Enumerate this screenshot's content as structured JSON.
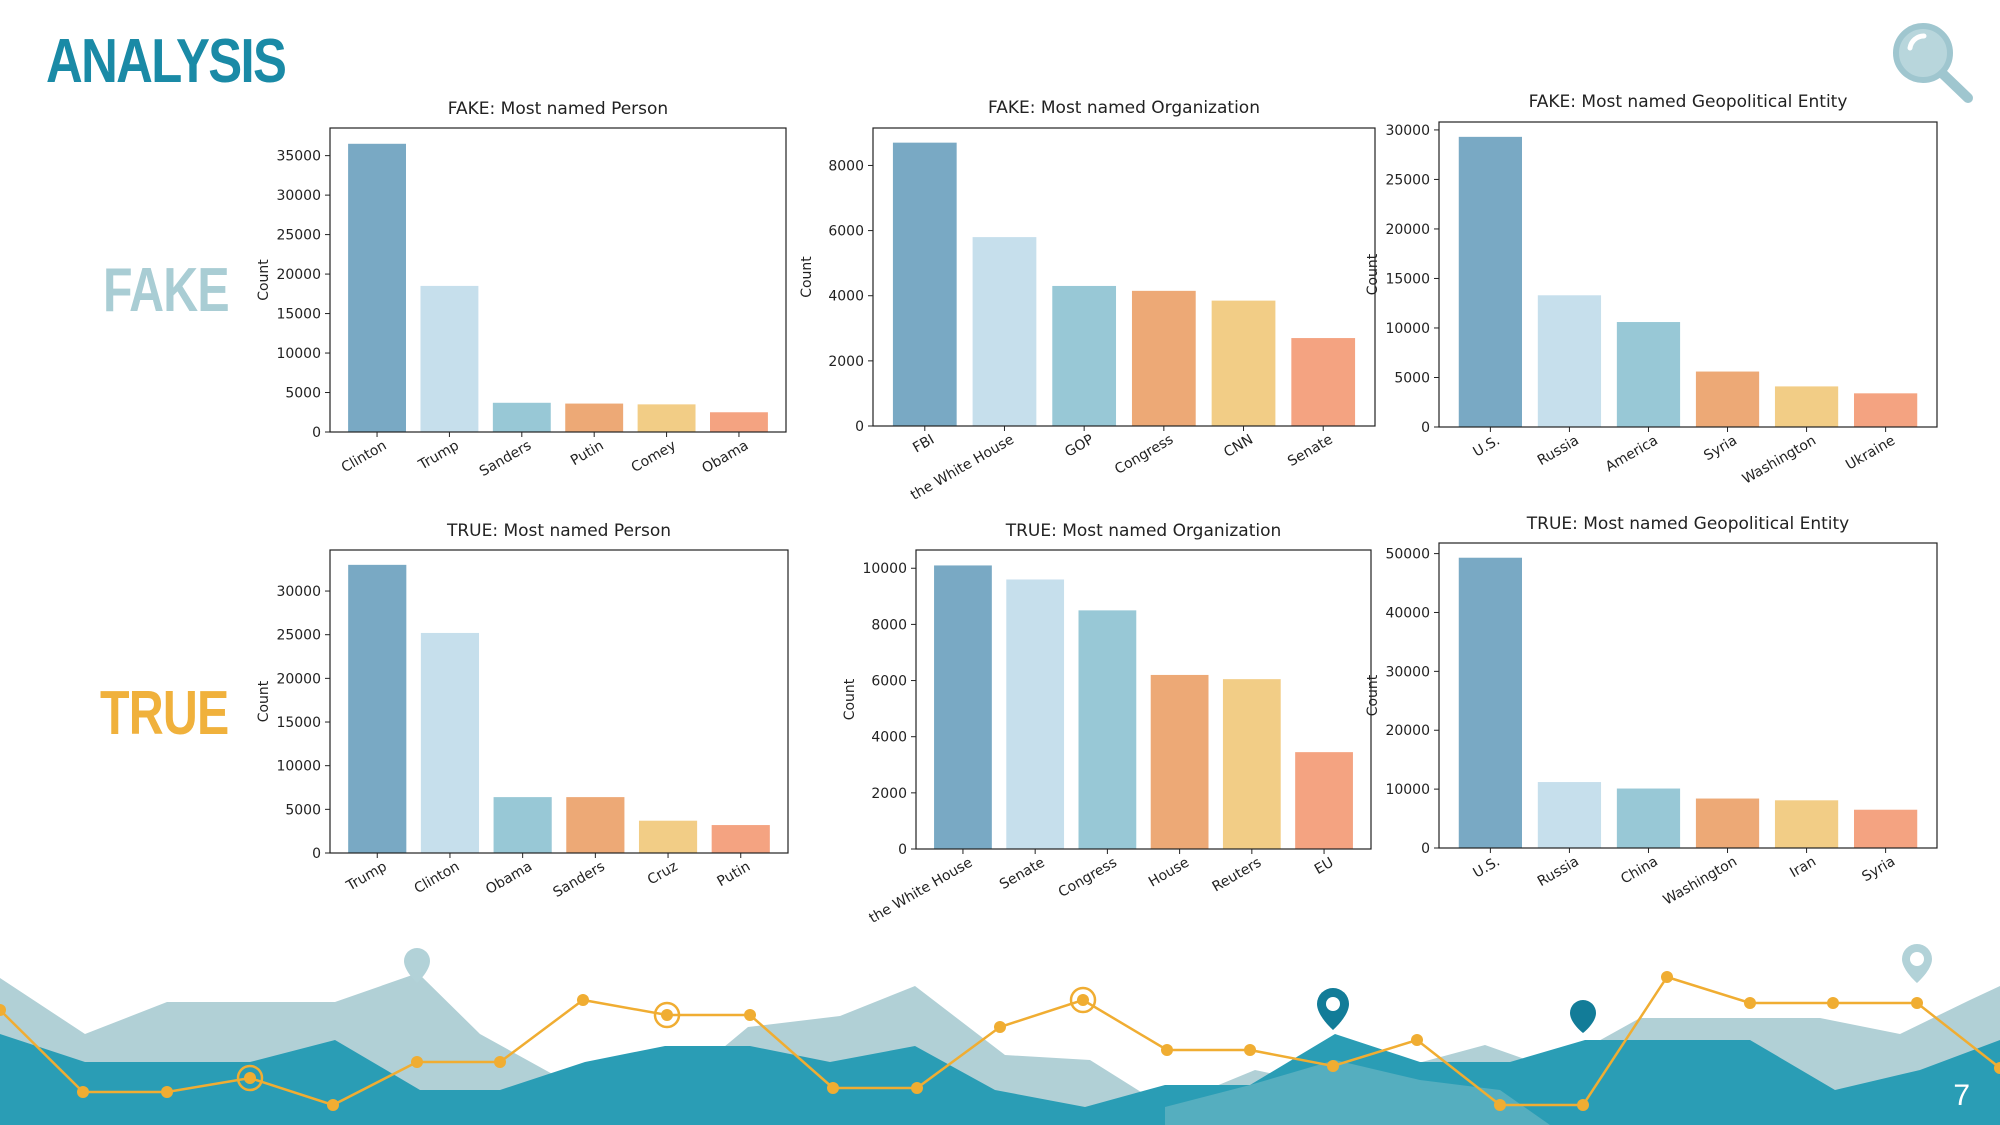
{
  "slide": {
    "title": "ANALYSIS",
    "page_number": "7",
    "fake_label": "FAKE",
    "true_label": "TRUE"
  },
  "colors": {
    "title": "#1a8aa6",
    "fake_label": "#a9cdd4",
    "true_label": "#f0b13c",
    "bars": [
      "#79a9c4",
      "#c6dfec",
      "#98c8d6",
      "#eda976",
      "#f2cd86",
      "#f4a381"
    ],
    "footer_light": "#b1d0d6",
    "footer_dark": "#2a9db5",
    "footer_mid": "#55aebf",
    "footer_line": "#f0ad32",
    "pin_dark": "#127c98",
    "pin_light": "#b2d2d8"
  },
  "chart_data": [
    {
      "type": "bar",
      "title": "FAKE: Most named Person",
      "ylabel": "Count",
      "categories": [
        "Clinton",
        "Trump",
        "Sanders",
        "Putin",
        "Comey",
        "Obama"
      ],
      "values": [
        36500,
        18500,
        3700,
        3600,
        3500,
        2500
      ],
      "yticks": [
        0,
        5000,
        10000,
        15000,
        20000,
        25000,
        30000,
        35000
      ],
      "ylim": [
        0,
        38500
      ]
    },
    {
      "type": "bar",
      "title": "FAKE: Most named Organization",
      "ylabel": "Count",
      "categories": [
        "FBI",
        "the White House",
        "GOP",
        "Congress",
        "CNN",
        "Senate"
      ],
      "values": [
        8700,
        5800,
        4300,
        4150,
        3850,
        2700
      ],
      "yticks": [
        0,
        2000,
        4000,
        6000,
        8000
      ],
      "ylim": [
        0,
        9150
      ]
    },
    {
      "type": "bar",
      "title": "FAKE: Most named Geopolitical Entity",
      "ylabel": "Count",
      "categories": [
        "U.S.",
        "Russia",
        "America",
        "Syria",
        "Washington",
        "Ukraine"
      ],
      "values": [
        29300,
        13300,
        10600,
        5600,
        4100,
        3400
      ],
      "yticks": [
        0,
        5000,
        10000,
        15000,
        20000,
        25000,
        30000
      ],
      "ylim": [
        0,
        30800
      ]
    },
    {
      "type": "bar",
      "title": "TRUE: Most named Person",
      "ylabel": "Count",
      "categories": [
        "Trump",
        "Clinton",
        "Obama",
        "Sanders",
        "Cruz",
        "Putin"
      ],
      "values": [
        33000,
        25200,
        6400,
        6400,
        3700,
        3200
      ],
      "yticks": [
        0,
        5000,
        10000,
        15000,
        20000,
        25000,
        30000
      ],
      "ylim": [
        0,
        34700
      ]
    },
    {
      "type": "bar",
      "title": "TRUE: Most named Organization",
      "ylabel": "Count",
      "categories": [
        "the White House",
        "Senate",
        "Congress",
        "House",
        "Reuters",
        "EU"
      ],
      "values": [
        10100,
        9600,
        8500,
        6200,
        6050,
        3450
      ],
      "yticks": [
        0,
        2000,
        4000,
        6000,
        8000,
        10000
      ],
      "ylim": [
        0,
        10650
      ]
    },
    {
      "type": "bar",
      "title": "TRUE: Most named Geopolitical Entity",
      "ylabel": "Count",
      "categories": [
        "U.S.",
        "Russia",
        "China",
        "Washington",
        "Iran",
        "Syria"
      ],
      "values": [
        49300,
        11200,
        10100,
        8400,
        8100,
        6500
      ],
      "yticks": [
        0,
        10000,
        20000,
        30000,
        40000,
        50000
      ],
      "ylim": [
        0,
        51800
      ]
    }
  ]
}
